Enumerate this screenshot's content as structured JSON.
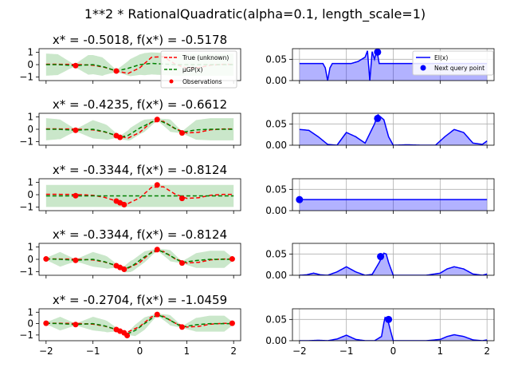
{
  "figure_title": "1**2 * RationalQuadratic(alpha=0.1, length_scale=1)",
  "colors": {
    "true_fn": "#ff0000",
    "gp_mean": "#008000",
    "gp_band": "#2ca02c",
    "observations": "#ff0000",
    "ei_line": "#0000ff",
    "ei_fill": "#0000ff",
    "next_point": "#0000ff",
    "grid": "#b0b0b0"
  },
  "chart_data": [
    {
      "type": "line",
      "panel": "left",
      "title": "x* = -0.5018, f(x*) = -0.5178",
      "xlim": [
        -2.15,
        2.15
      ],
      "ylim": [
        -1.3,
        1.3
      ],
      "yticks": [
        1,
        0,
        -1
      ],
      "xtick_labels_shown": false,
      "legend": {
        "position": "lower-right",
        "entries": [
          "True (unknown)",
          "μGP(x)",
          "Observations"
        ]
      },
      "true_fn": {
        "x": [
          -2.0,
          -1.75,
          -1.5,
          -1.25,
          -1.0,
          -0.75,
          -0.5,
          -0.25,
          0.0,
          0.25,
          0.5,
          0.75,
          1.0,
          1.25,
          1.5,
          1.75,
          2.0
        ],
        "y": [
          0.03,
          0.03,
          0.02,
          0.0,
          -0.05,
          -0.22,
          -0.52,
          -0.72,
          -0.25,
          0.6,
          0.65,
          0.05,
          -0.3,
          -0.25,
          -0.05,
          0.02,
          0.03
        ]
      },
      "gp_mean": {
        "x": [
          -2.0,
          -1.75,
          -1.5,
          -1.4,
          -1.25,
          -1.0,
          -0.75,
          -0.5,
          -0.25,
          0.0,
          0.25,
          0.5,
          0.75,
          1.0,
          1.25,
          1.5,
          1.75,
          2.0
        ],
        "y": [
          0.0,
          0.0,
          -0.05,
          -0.1,
          -0.05,
          0.0,
          -0.2,
          -0.52,
          -0.3,
          0.0,
          0.1,
          0.05,
          0.0,
          0.0,
          0.0,
          0.0,
          0.0,
          0.0
        ]
      },
      "band_half_width": {
        "x": [
          -2.0,
          -1.75,
          -1.4,
          -1.1,
          -0.8,
          -0.5,
          -0.2,
          0.1,
          0.4,
          0.7,
          1.0,
          1.3,
          1.6,
          1.9,
          2.0
        ],
        "y": [
          0.9,
          0.85,
          0.08,
          0.8,
          0.75,
          0.08,
          0.7,
          0.9,
          0.9,
          0.9,
          0.9,
          0.9,
          0.9,
          0.9,
          0.9
        ]
      },
      "observations": {
        "x": [
          -1.37,
          -0.5018
        ],
        "y": [
          -0.08,
          -0.5178
        ]
      }
    },
    {
      "type": "area",
      "panel": "right",
      "title": "",
      "xlim": [
        -2.15,
        2.15
      ],
      "ylim": [
        0.0,
        0.075
      ],
      "yticks": [
        0.05,
        0.0
      ],
      "xtick_labels_shown": false,
      "legend": {
        "position": "upper-right",
        "entries": [
          "EI(x)",
          "Next query point"
        ]
      },
      "ei": {
        "x": [
          -2.0,
          -1.5,
          -1.45,
          -1.4,
          -1.35,
          -1.3,
          -1.25,
          -0.9,
          -0.75,
          -0.6,
          -0.55,
          -0.5,
          -0.45,
          -0.4,
          -0.35,
          -0.3,
          -0.2,
          0.0,
          0.2,
          0.5,
          1.0,
          1.5,
          1.9,
          1.95,
          2.0
        ],
        "y": [
          0.04,
          0.04,
          0.03,
          0.0,
          0.03,
          0.04,
          0.04,
          0.04,
          0.045,
          0.055,
          0.07,
          0.0,
          0.068,
          0.05,
          0.072,
          0.04,
          0.04,
          0.04,
          0.04,
          0.04,
          0.04,
          0.04,
          0.04,
          0.04,
          0.04
        ]
      },
      "next_point": {
        "x": -0.3344,
        "y": 0.067
      }
    },
    {
      "type": "line",
      "panel": "left",
      "title": "x* = -0.4235, f(x*) = -0.6612",
      "xlim": [
        -2.15,
        2.15
      ],
      "ylim": [
        -1.3,
        1.3
      ],
      "yticks": [
        1,
        0,
        -1
      ],
      "xtick_labels_shown": false,
      "true_fn": {
        "x": [
          -2.0,
          -1.75,
          -1.5,
          -1.25,
          -1.0,
          -0.75,
          -0.5,
          -0.25,
          0.0,
          0.25,
          0.5,
          0.75,
          1.0,
          1.25,
          1.5,
          1.75,
          2.0
        ],
        "y": [
          0.03,
          0.03,
          0.02,
          0.0,
          -0.05,
          -0.22,
          -0.52,
          -0.72,
          -0.25,
          0.6,
          0.65,
          0.05,
          -0.3,
          -0.25,
          -0.05,
          0.02,
          0.03
        ]
      },
      "gp_mean": {
        "x": [
          -2.0,
          -1.75,
          -1.37,
          -1.0,
          -0.75,
          -0.5,
          -0.42,
          -0.25,
          0.0,
          0.37,
          0.6,
          0.9,
          1.2,
          1.5,
          1.8,
          2.0
        ],
        "y": [
          0.0,
          0.0,
          -0.08,
          0.0,
          -0.2,
          -0.52,
          -0.66,
          -0.5,
          0.1,
          0.8,
          0.4,
          -0.25,
          -0.05,
          0.0,
          0.0,
          0.0
        ]
      },
      "band_half_width": {
        "x": [
          -2.0,
          -1.7,
          -1.37,
          -1.0,
          -0.7,
          -0.45,
          -0.2,
          0.1,
          0.37,
          0.65,
          0.9,
          1.2,
          1.5,
          1.8,
          2.0
        ],
        "y": [
          0.9,
          0.8,
          0.08,
          0.75,
          0.6,
          0.08,
          0.5,
          0.5,
          0.08,
          0.5,
          0.08,
          0.8,
          0.9,
          0.9,
          0.9
        ]
      },
      "observations": {
        "x": [
          -1.37,
          -0.5018,
          -0.4235,
          0.37,
          0.9
        ],
        "y": [
          -0.08,
          -0.5178,
          -0.6612,
          0.8,
          -0.3
        ]
      }
    },
    {
      "type": "area",
      "panel": "right",
      "title": "",
      "xlim": [
        -2.15,
        2.15
      ],
      "ylim": [
        0.0,
        0.075
      ],
      "yticks": [
        0.05,
        0.0
      ],
      "xtick_labels_shown": false,
      "ei": {
        "x": [
          -2.0,
          -1.8,
          -1.6,
          -1.4,
          -1.2,
          -1.0,
          -0.8,
          -0.6,
          -0.4,
          -0.33,
          -0.2,
          -0.1,
          0.0,
          0.3,
          0.6,
          0.9,
          1.1,
          1.3,
          1.5,
          1.7,
          1.9,
          2.0
        ],
        "y": [
          0.037,
          0.035,
          0.02,
          0.002,
          0.0,
          0.03,
          0.02,
          0.005,
          0.05,
          0.072,
          0.06,
          0.02,
          0.0,
          0.001,
          0.0,
          0.0,
          0.02,
          0.037,
          0.03,
          0.005,
          0.002,
          0.01
        ]
      },
      "next_point": {
        "x": -0.3344,
        "y": 0.063
      }
    },
    {
      "type": "line",
      "panel": "left",
      "title": "x* = -0.3344, f(x*) = -0.8124",
      "xlim": [
        -2.15,
        2.15
      ],
      "ylim": [
        -1.3,
        1.3
      ],
      "yticks": [
        1,
        0,
        -1
      ],
      "xtick_labels_shown": false,
      "true_fn": {
        "x": [
          -2.0,
          -1.75,
          -1.5,
          -1.25,
          -1.0,
          -0.75,
          -0.5,
          -0.25,
          0.0,
          0.25,
          0.5,
          0.75,
          1.0,
          1.25,
          1.5,
          1.75,
          2.0
        ],
        "y": [
          0.03,
          0.03,
          0.02,
          0.0,
          -0.05,
          -0.22,
          -0.52,
          -0.72,
          -0.25,
          0.6,
          0.65,
          0.05,
          -0.3,
          -0.25,
          -0.05,
          0.02,
          0.03
        ]
      },
      "gp_mean": {
        "x": [
          -2.0,
          2.0
        ],
        "y": [
          -0.1,
          -0.1
        ]
      },
      "band_half_width": {
        "x": [
          -2.0,
          2.0
        ],
        "y": [
          0.9,
          0.9
        ]
      },
      "observations": {
        "x": [
          -1.37,
          -0.5018,
          -0.4235,
          -0.3344,
          0.37,
          0.9
        ],
        "y": [
          -0.08,
          -0.5178,
          -0.6612,
          -0.8124,
          0.8,
          -0.3
        ]
      }
    },
    {
      "type": "area",
      "panel": "right",
      "title": "",
      "xlim": [
        -2.15,
        2.15
      ],
      "ylim": [
        0.0,
        0.075
      ],
      "yticks": [
        0.05,
        0.0
      ],
      "xtick_labels_shown": false,
      "ei": {
        "x": [
          -2.0,
          2.0
        ],
        "y": [
          0.026,
          0.026
        ]
      },
      "next_point": {
        "x": -2.0,
        "y": 0.026
      }
    },
    {
      "type": "line",
      "panel": "left",
      "title": "x* = -0.3344, f(x*) = -0.8124",
      "xlim": [
        -2.15,
        2.15
      ],
      "ylim": [
        -1.3,
        1.3
      ],
      "yticks": [
        1,
        0,
        -1
      ],
      "xtick_labels_shown": false,
      "true_fn": {
        "x": [
          -2.0,
          -1.75,
          -1.5,
          -1.25,
          -1.0,
          -0.75,
          -0.5,
          -0.25,
          0.0,
          0.25,
          0.5,
          0.75,
          1.0,
          1.25,
          1.5,
          1.75,
          2.0
        ],
        "y": [
          0.03,
          0.03,
          0.02,
          0.0,
          -0.05,
          -0.22,
          -0.52,
          -0.72,
          -0.25,
          0.6,
          0.65,
          0.05,
          -0.3,
          -0.25,
          -0.05,
          0.02,
          0.03
        ]
      },
      "gp_mean": {
        "x": [
          -2.0,
          -1.7,
          -1.37,
          -1.0,
          -0.75,
          -0.5,
          -0.33,
          -0.15,
          0.1,
          0.37,
          0.6,
          0.9,
          1.2,
          1.5,
          1.8,
          2.0
        ],
        "y": [
          0.03,
          0.0,
          -0.08,
          0.0,
          -0.2,
          -0.52,
          -0.81,
          -0.5,
          0.2,
          0.8,
          0.4,
          -0.25,
          -0.1,
          0.0,
          0.0,
          0.0
        ]
      },
      "band_half_width": {
        "x": [
          -2.0,
          -1.7,
          -1.37,
          -1.0,
          -0.7,
          -0.45,
          -0.2,
          0.1,
          0.37,
          0.65,
          0.9,
          1.2,
          1.5,
          1.8,
          2.0
        ],
        "y": [
          0.08,
          0.6,
          0.08,
          0.6,
          0.5,
          0.08,
          0.45,
          0.45,
          0.08,
          0.45,
          0.08,
          0.6,
          0.7,
          0.7,
          0.08
        ]
      },
      "observations": {
        "x": [
          -2.0,
          -1.37,
          -0.5018,
          -0.4235,
          -0.3344,
          0.37,
          0.9,
          1.97
        ],
        "y": [
          0.03,
          -0.08,
          -0.5178,
          -0.6612,
          -0.8124,
          0.8,
          -0.3,
          0.03
        ]
      }
    },
    {
      "type": "area",
      "panel": "right",
      "title": "",
      "xlim": [
        -2.15,
        2.15
      ],
      "ylim": [
        0.0,
        0.075
      ],
      "yticks": [
        0.05,
        0.0
      ],
      "xtick_labels_shown": false,
      "ei": {
        "x": [
          -2.0,
          -1.85,
          -1.7,
          -1.55,
          -1.4,
          -1.2,
          -1.0,
          -0.8,
          -0.6,
          -0.45,
          -0.3,
          -0.2,
          -0.15,
          -0.1,
          0.0,
          0.3,
          0.7,
          1.0,
          1.15,
          1.3,
          1.5,
          1.7,
          1.9,
          2.0
        ],
        "y": [
          0.0,
          0.001,
          0.005,
          0.001,
          0.0,
          0.008,
          0.02,
          0.008,
          0.0,
          0.002,
          0.03,
          0.052,
          0.05,
          0.03,
          0.0,
          0.0,
          0.0,
          0.005,
          0.015,
          0.02,
          0.015,
          0.003,
          0.0,
          0.003
        ]
      },
      "next_point": {
        "x": -0.2704,
        "y": 0.044
      }
    },
    {
      "type": "line",
      "panel": "left",
      "title": "x* = -0.2704, f(x*) = -1.0459",
      "xlim": [
        -2.15,
        2.15
      ],
      "ylim": [
        -1.5,
        1.3
      ],
      "yticks": [
        1,
        0,
        -1
      ],
      "xticks": [
        -2,
        -1,
        0,
        1,
        2
      ],
      "xtick_labels_shown": true,
      "true_fn": {
        "x": [
          -2.0,
          -1.75,
          -1.5,
          -1.25,
          -1.0,
          -0.75,
          -0.5,
          -0.25,
          0.0,
          0.25,
          0.5,
          0.75,
          1.0,
          1.25,
          1.5,
          1.75,
          2.0
        ],
        "y": [
          0.03,
          0.03,
          0.02,
          0.0,
          -0.05,
          -0.22,
          -0.52,
          -0.72,
          -0.25,
          0.6,
          0.65,
          0.05,
          -0.3,
          -0.25,
          -0.05,
          0.02,
          0.03
        ]
      },
      "gp_mean": {
        "x": [
          -2.0,
          -1.7,
          -1.37,
          -1.0,
          -0.75,
          -0.5,
          -0.27,
          -0.1,
          0.1,
          0.37,
          0.6,
          0.9,
          1.2,
          1.5,
          1.8,
          2.0
        ],
        "y": [
          0.03,
          0.0,
          -0.08,
          0.0,
          -0.2,
          -0.52,
          -0.9,
          -0.6,
          0.0,
          0.8,
          0.4,
          -0.3,
          -0.1,
          0.0,
          0.0,
          0.0
        ]
      },
      "band_half_width": {
        "x": [
          -2.0,
          -1.7,
          -1.37,
          -1.0,
          -0.7,
          -0.45,
          -0.27,
          -0.1,
          0.1,
          0.37,
          0.65,
          0.9,
          1.2,
          1.5,
          1.8,
          2.0
        ],
        "y": [
          0.08,
          0.6,
          0.08,
          0.6,
          0.5,
          0.08,
          0.08,
          0.5,
          0.55,
          0.08,
          0.45,
          0.08,
          0.6,
          0.7,
          0.7,
          0.08
        ]
      },
      "observations": {
        "x": [
          -2.0,
          -1.37,
          -0.5018,
          -0.4235,
          -0.3344,
          -0.2704,
          0.37,
          0.9,
          1.97
        ],
        "y": [
          0.03,
          -0.08,
          -0.5178,
          -0.6612,
          -0.8124,
          -1.0459,
          0.8,
          -0.3,
          0.03
        ]
      }
    },
    {
      "type": "area",
      "panel": "right",
      "title": "",
      "xlim": [
        -2.15,
        2.15
      ],
      "ylim": [
        0.0,
        0.075
      ],
      "yticks": [
        0.05,
        0.0
      ],
      "xticks": [
        -2,
        -1,
        0,
        1,
        2
      ],
      "xtick_labels_shown": true,
      "ei": {
        "x": [
          -2.0,
          -1.8,
          -1.6,
          -1.4,
          -1.2,
          -1.0,
          -0.8,
          -0.6,
          -0.4,
          -0.25,
          -0.18,
          -0.12,
          -0.05,
          0.0,
          0.3,
          0.7,
          1.0,
          1.15,
          1.3,
          1.5,
          1.7,
          1.9,
          2.0
        ],
        "y": [
          0.0,
          0.0,
          0.001,
          0.0,
          0.004,
          0.013,
          0.003,
          0.0,
          0.0,
          0.01,
          0.055,
          0.05,
          0.02,
          0.0,
          0.0,
          0.0,
          0.003,
          0.01,
          0.014,
          0.01,
          0.002,
          0.0,
          0.002
        ]
      },
      "next_point": {
        "x": -0.1,
        "y": 0.05
      }
    }
  ],
  "tick_labels": {
    "left_y": [
      "1",
      "0",
      "−1"
    ],
    "right_y": [
      "0.05",
      "0.00"
    ],
    "x": [
      "−2",
      "−1",
      "0",
      "1",
      "2"
    ]
  },
  "legend_labels": {
    "true_fn": "True (unknown)",
    "gp_mean": "μGP(x)",
    "observations": "Observations",
    "ei": "EI(x)",
    "next_point": "Next query point"
  }
}
